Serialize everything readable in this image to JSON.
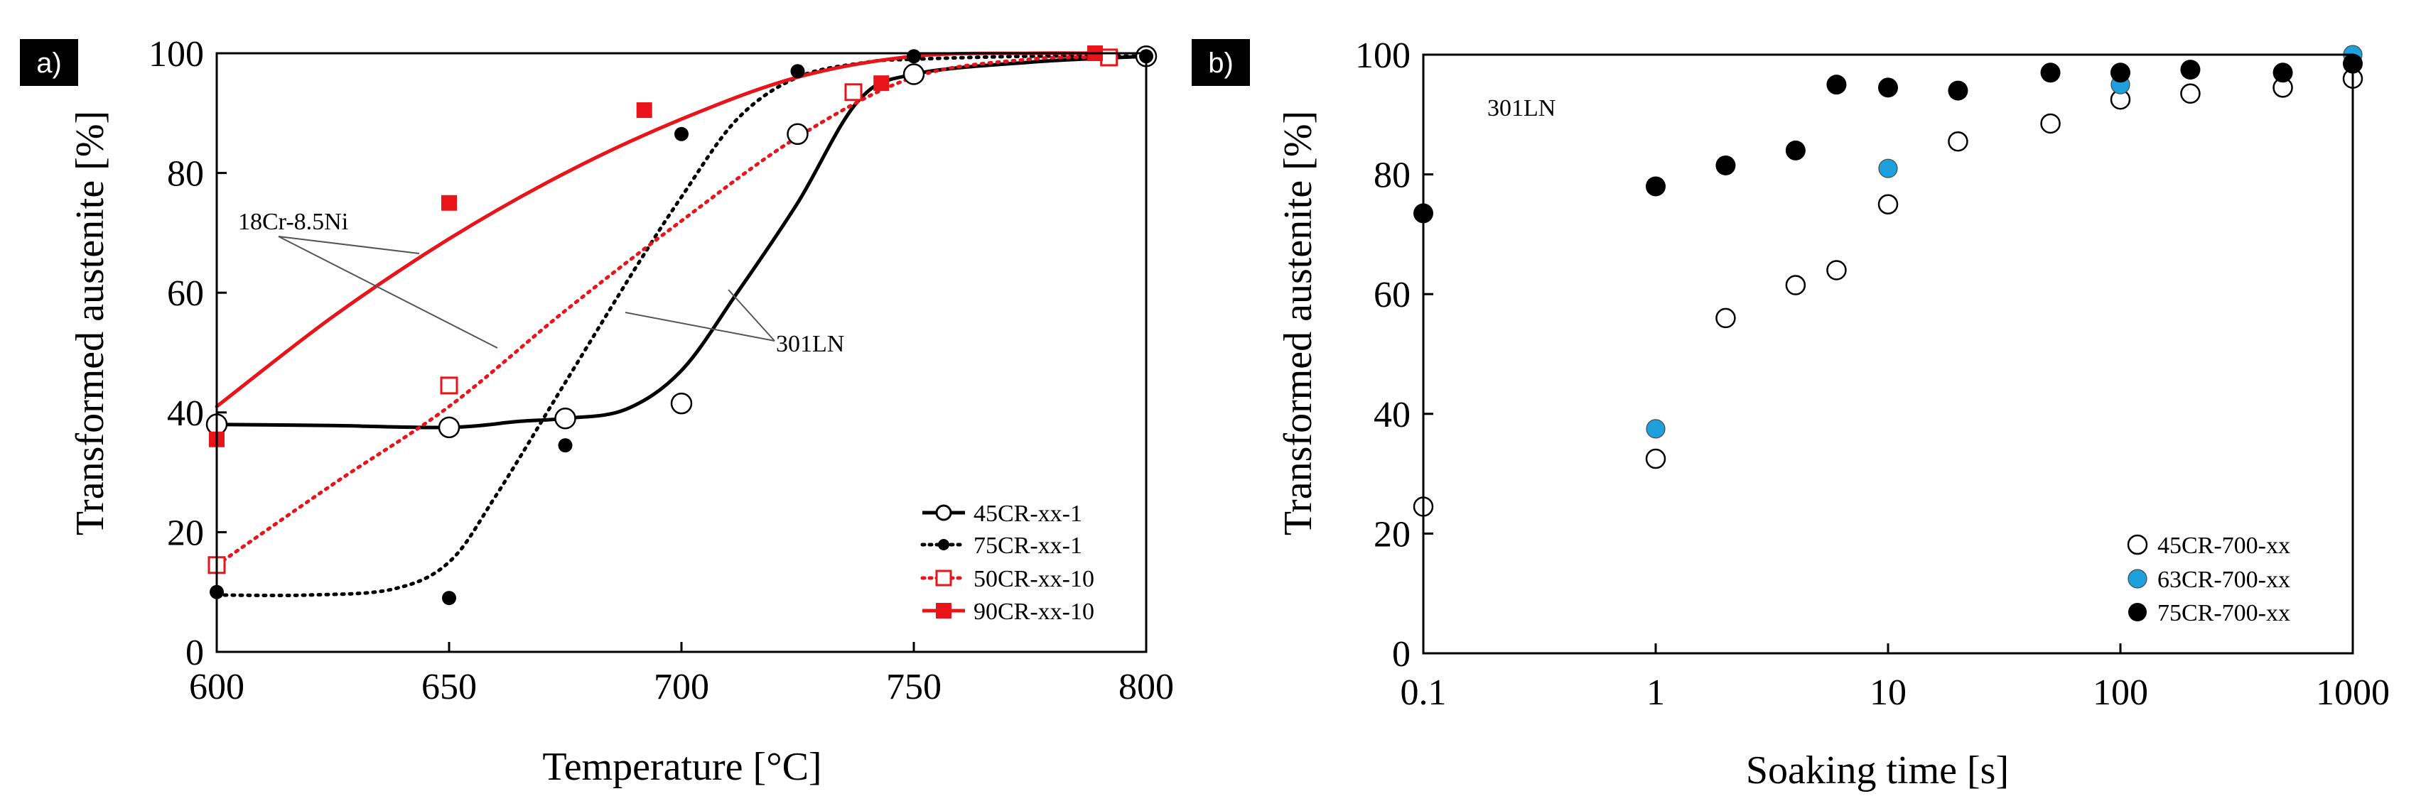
{
  "chart_data": [
    {
      "type": "scatter",
      "panel_label": "a)",
      "xlabel": "Temperature [°C]",
      "ylabel": "Transformed austenite [%]",
      "xlim": [
        600,
        800
      ],
      "ylim": [
        0,
        100
      ],
      "xticks": [
        600,
        650,
        700,
        750,
        800
      ],
      "yticks": [
        0,
        20,
        40,
        60,
        80,
        100
      ],
      "grid": false,
      "legend_position": "bottom-right",
      "series": [
        {
          "name": "45CR-xx-1",
          "marker": "open-circle",
          "color": "#000000",
          "line_style": "solid",
          "x": [
            600,
            650,
            675,
            700,
            725,
            750,
            800
          ],
          "y": [
            38,
            37.5,
            39,
            41.5,
            86.5,
            96.5,
            99.5
          ],
          "curve_x": [
            600,
            625,
            650,
            665,
            675,
            688,
            700,
            712,
            725,
            738,
            750,
            775,
            800
          ],
          "curve_y": [
            38,
            37.8,
            37.5,
            38.5,
            39,
            40.5,
            47,
            60,
            75,
            92,
            96.5,
            98.5,
            99.5
          ]
        },
        {
          "name": "75CR-xx-1",
          "marker": "filled-circle-small",
          "color": "#000000",
          "line_style": "dotted",
          "x": [
            600,
            650,
            675,
            700,
            725,
            750,
            800
          ],
          "y": [
            10,
            9,
            34.5,
            86.5,
            97,
            99.5,
            99.5
          ],
          "curve_x": [
            600,
            620,
            638,
            650,
            660,
            675,
            690,
            700,
            712,
            725,
            740,
            750,
            775,
            800
          ],
          "curve_y": [
            9.5,
            9.5,
            10.5,
            15,
            26,
            45,
            64,
            76,
            89,
            96,
            98.5,
            99,
            99.5,
            99.5
          ]
        },
        {
          "name": "50CR-xx-10",
          "marker": "open-square",
          "color": "#e8141a",
          "line_style": "dotted",
          "x": [
            600,
            650,
            737,
            792
          ],
          "y": [
            14.5,
            44.5,
            93.5,
            99.3
          ],
          "curve_x": [
            600,
            625,
            650,
            675,
            700,
            725,
            750,
            775,
            792
          ],
          "curve_y": [
            14.5,
            28,
            41,
            57,
            72,
            86,
            96,
            99,
            99.3
          ]
        },
        {
          "name": "90CR-xx-10",
          "marker": "filled-square",
          "color": "#e8141a",
          "line_style": "solid",
          "x": [
            600,
            650,
            692,
            743,
            789
          ],
          "y": [
            35.5,
            75,
            90.5,
            95,
            100
          ],
          "curve_x": [
            600,
            625,
            650,
            675,
            700,
            725,
            750,
            775,
            790
          ],
          "curve_y": [
            41,
            56,
            69,
            80,
            89,
            96,
            99.5,
            100,
            100
          ]
        }
      ],
      "annotations": [
        {
          "text": "18Cr-8.5Ni",
          "points_to": [
            "90CR-xx-10",
            "50CR-xx-10"
          ]
        },
        {
          "text": "301LN",
          "points_to": [
            "75CR-xx-1",
            "45CR-xx-1"
          ]
        }
      ]
    },
    {
      "type": "scatter",
      "panel_label": "b)",
      "xlabel": "Soaking time [s]",
      "ylabel": "Transformed austenite [%]",
      "xscale": "log",
      "xlim": [
        0.1,
        1000
      ],
      "ylim": [
        0,
        100
      ],
      "xticks": [
        0.1,
        1,
        10,
        100,
        1000
      ],
      "xtick_labels": [
        "0.1",
        "1",
        "10",
        "100",
        "1000"
      ],
      "yticks": [
        0,
        20,
        40,
        60,
        80,
        100
      ],
      "grid": false,
      "legend_position": "bottom-right",
      "annotation": "301LN",
      "series": [
        {
          "name": "45CR-700-xx",
          "marker": "open-circle",
          "color": "#000000",
          "x": [
            0.1,
            1,
            2,
            4,
            6,
            10,
            20,
            50,
            100,
            200,
            500,
            1000
          ],
          "y": [
            24.5,
            32.5,
            56,
            61.5,
            64,
            75,
            85.5,
            88.5,
            92.5,
            93.5,
            94.5,
            96
          ]
        },
        {
          "name": "63CR-700-xx",
          "marker": "filled-circle",
          "color": "#1ea0dc",
          "x": [
            1,
            10,
            100,
            1000
          ],
          "y": [
            37.5,
            81,
            95,
            100
          ]
        },
        {
          "name": "75CR-700-xx",
          "marker": "filled-circle",
          "color": "#000000",
          "x": [
            0.1,
            1,
            2,
            4,
            6,
            10,
            20,
            50,
            100,
            200,
            500,
            1000
          ],
          "y": [
            73.5,
            78,
            81.5,
            84,
            95,
            94.5,
            94,
            97,
            97,
            97.5,
            97,
            98.5
          ]
        }
      ]
    }
  ]
}
